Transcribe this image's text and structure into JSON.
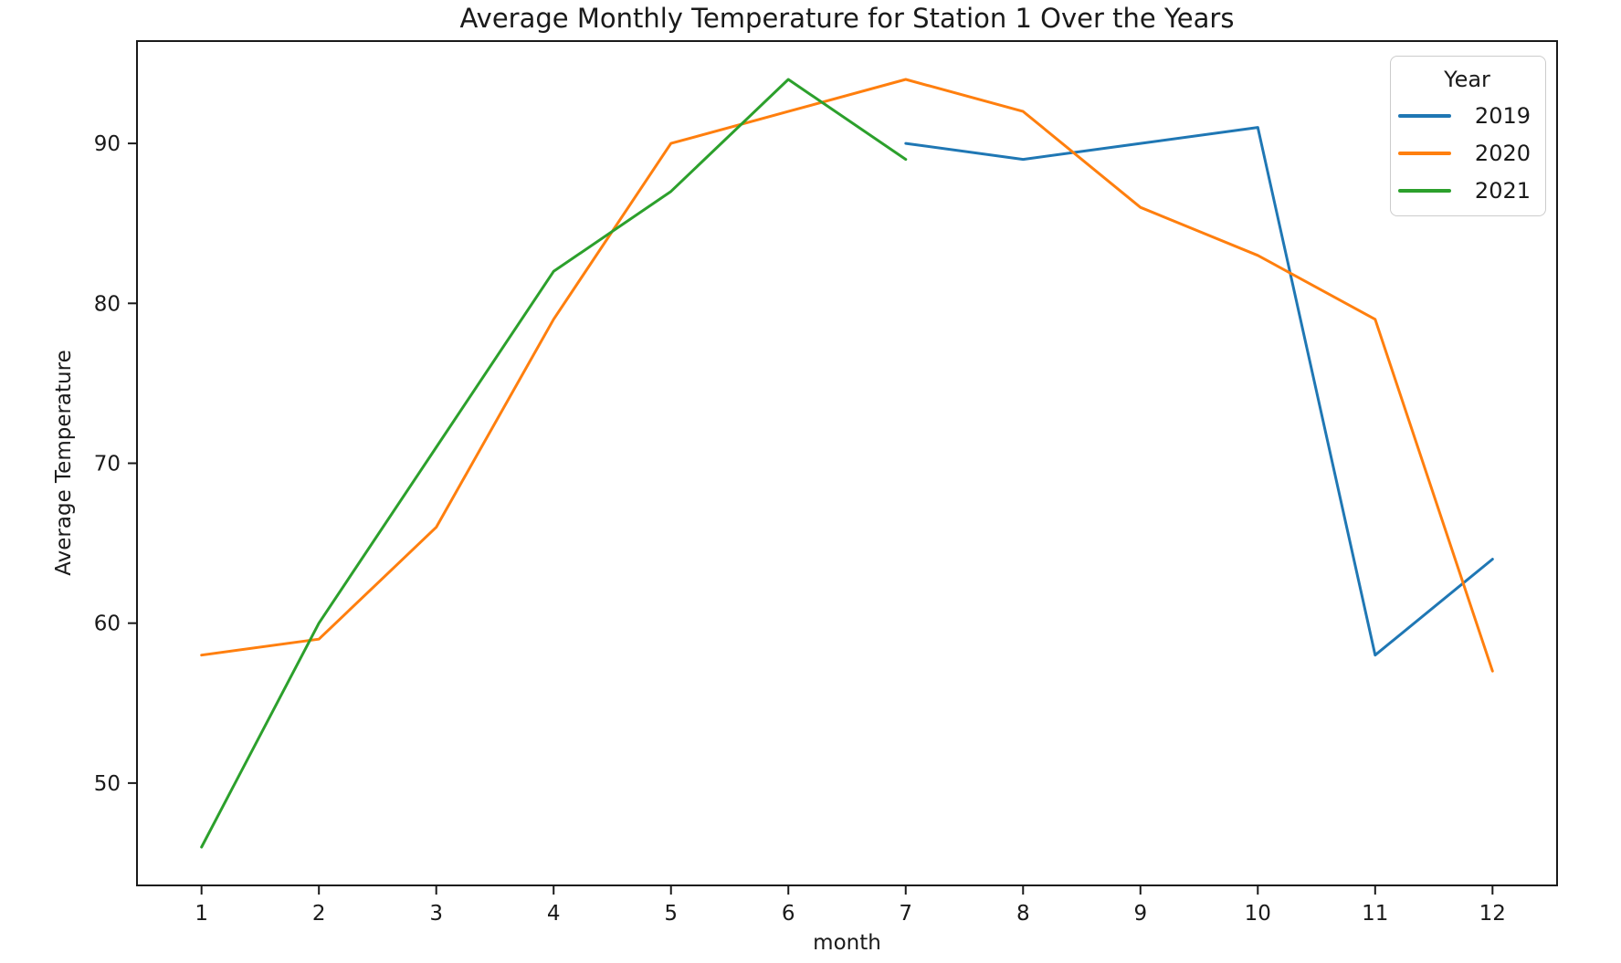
{
  "title": "Average Monthly Temperature for Station 1 Over the Years",
  "chart_data": {
    "type": "line",
    "title": "Average Monthly Temperature for Station 1 Over the Years",
    "xlabel": "month",
    "ylabel": "Average Temperature",
    "xlim": [
      0.45,
      12.55
    ],
    "ylim": [
      43.6,
      96.4
    ],
    "x_ticks": [
      1,
      2,
      3,
      4,
      5,
      6,
      7,
      8,
      9,
      10,
      11,
      12
    ],
    "y_ticks": [
      50,
      60,
      70,
      80,
      90
    ],
    "grid": false,
    "legend": {
      "title": "Year",
      "position": "upper right"
    },
    "series": [
      {
        "name": "2019",
        "color": "#1f77b4",
        "x": [
          7,
          8,
          9,
          10,
          11,
          12
        ],
        "y": [
          90,
          89,
          90,
          91,
          58,
          64
        ]
      },
      {
        "name": "2020",
        "color": "#ff7f0e",
        "x": [
          1,
          2,
          3,
          4,
          5,
          6,
          7,
          8,
          9,
          10,
          11,
          12
        ],
        "y": [
          58,
          59,
          66,
          79,
          90,
          92,
          94,
          92,
          86,
          83,
          79,
          57
        ]
      },
      {
        "name": "2021",
        "color": "#2ca02c",
        "x": [
          1,
          2,
          3,
          4,
          5,
          6,
          7
        ],
        "y": [
          46,
          60,
          71,
          82,
          87,
          94,
          89
        ]
      }
    ],
    "frame_color": "#1a1a1a",
    "text_color": "#1a1a1a"
  }
}
